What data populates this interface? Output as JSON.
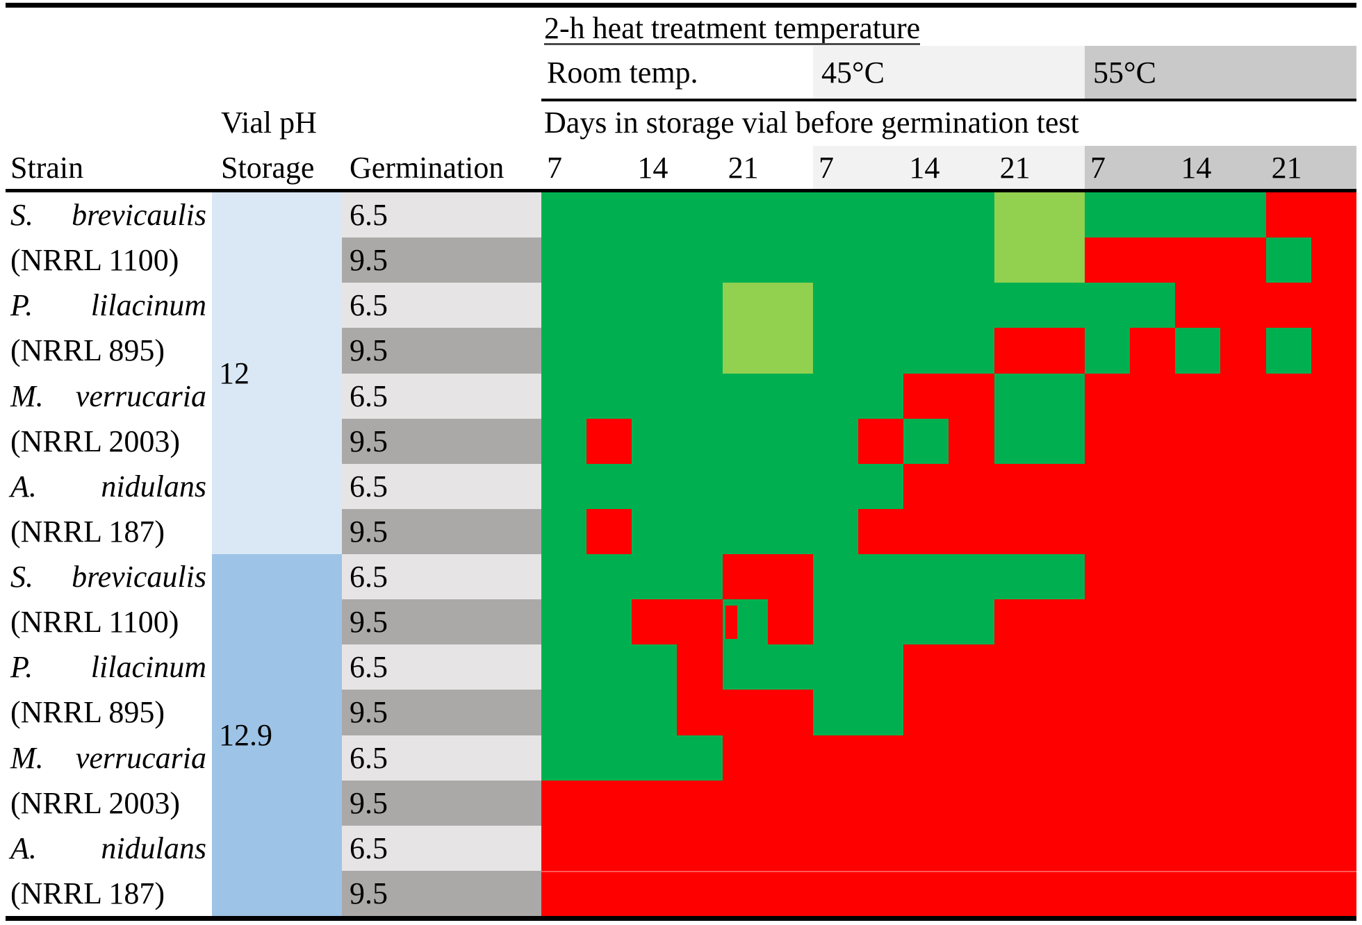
{
  "header": {
    "heat_title": "2-h heat treatment temperature",
    "room_temp_label": "Room temp.",
    "temp_45_label": "45°C",
    "temp_55_label": "55°C",
    "days_title": "Days in storage vial before germination test",
    "strain_col": "Strain",
    "vial_ph": "Vial pH",
    "storage_col": "Storage",
    "germination_col": "Germination",
    "day_numbers": [
      "7",
      "14",
      "21",
      "7",
      "14",
      "21",
      "7",
      "14",
      "21"
    ]
  },
  "groups": [
    {
      "storage_ph": "12",
      "strains": [
        {
          "genus": "S.",
          "species": "brevicaulis",
          "nrrl": "(NRRL 1100)"
        },
        {
          "genus": "P.",
          "species": "lilacinum",
          "nrrl": "(NRRL 895)"
        },
        {
          "genus": "M.",
          "species": "verrucaria",
          "nrrl": "(NRRL 2003)"
        },
        {
          "genus": "A.",
          "species": "nidulans",
          "nrrl": "(NRRL 187)"
        }
      ]
    },
    {
      "storage_ph": "12.9",
      "strains": [
        {
          "genus": "S.",
          "species": "brevicaulis",
          "nrrl": "(NRRL 1100)"
        },
        {
          "genus": "P.",
          "species": "lilacinum",
          "nrrl": "(NRRL 895)"
        },
        {
          "genus": "M.",
          "species": "verrucaria",
          "nrrl": "(NRRL 2003)"
        },
        {
          "genus": "A.",
          "species": "nidulans",
          "nrrl": "(NRRL 187)"
        }
      ]
    }
  ],
  "germination_ph_values": [
    "6.5",
    "9.5"
  ],
  "colors": {
    "green": "#00B050",
    "light_green": "#92D050",
    "red": "#FF0000",
    "temp45_bg": "#F2F2F2",
    "temp55_bg": "#C9C9C9",
    "germ_65_bg": "#E6E4E4",
    "germ_95_bg": "#ABA8A8",
    "storage_12_bg": "#DAE8F5",
    "storage_129_bg": "#9DC3E6"
  },
  "chart_data": {
    "type": "heatmap",
    "title": "2-h heat treatment temperature",
    "column_groups": [
      {
        "temperature": "Room temp.",
        "days": [
          7,
          14,
          21
        ]
      },
      {
        "temperature": "45°C",
        "days": [
          7,
          14,
          21
        ]
      },
      {
        "temperature": "55°C",
        "days": [
          7,
          14,
          21
        ]
      }
    ],
    "subcolumns_per_day": 2,
    "color_codes": {
      "G": "#00B050 dark green",
      "L": "#92D050 light green",
      "R": "#FF0000 red"
    },
    "rows": [
      {
        "strain": "S. brevicaulis (NRRL 1100)",
        "storage_ph": "12",
        "germination_ph": "6.5"
      },
      {
        "strain": "S. brevicaulis (NRRL 1100)",
        "storage_ph": "12",
        "germination_ph": "9.5"
      },
      {
        "strain": "P. lilacinum (NRRL 895)",
        "storage_ph": "12",
        "germination_ph": "6.5"
      },
      {
        "strain": "P. lilacinum (NRRL 895)",
        "storage_ph": "12",
        "germination_ph": "9.5"
      },
      {
        "strain": "M. verrucaria (NRRL 2003)",
        "storage_ph": "12",
        "germination_ph": "6.5"
      },
      {
        "strain": "M. verrucaria (NRRL 2003)",
        "storage_ph": "12",
        "germination_ph": "9.5"
      },
      {
        "strain": "A. nidulans (NRRL 187)",
        "storage_ph": "12",
        "germination_ph": "6.5"
      },
      {
        "strain": "A. nidulans (NRRL 187)",
        "storage_ph": "12",
        "germination_ph": "9.5"
      },
      {
        "strain": "S. brevicaulis (NRRL 1100)",
        "storage_ph": "12.9",
        "germination_ph": "6.5"
      },
      {
        "strain": "S. brevicaulis (NRRL 1100)",
        "storage_ph": "12.9",
        "germination_ph": "9.5"
      },
      {
        "strain": "P. lilacinum (NRRL 895)",
        "storage_ph": "12.9",
        "germination_ph": "6.5"
      },
      {
        "strain": "P. lilacinum (NRRL 895)",
        "storage_ph": "12.9",
        "germination_ph": "9.5"
      },
      {
        "strain": "M. verrucaria (NRRL 2003)",
        "storage_ph": "12.9",
        "germination_ph": "6.5"
      },
      {
        "strain": "M. verrucaria (NRRL 2003)",
        "storage_ph": "12.9",
        "germination_ph": "9.5"
      },
      {
        "strain": "A. nidulans (NRRL 187)",
        "storage_ph": "12.9",
        "germination_ph": "6.5"
      },
      {
        "strain": "A. nidulans (NRRL 187)",
        "storage_ph": "12.9",
        "germination_ph": "9.5"
      }
    ],
    "cells": [
      "GGGGGGGGGGLLGGGGRR",
      "GGGGGGGGGGLLRRRRGR",
      "GGGGLLGGGGGGGGRRRR",
      "GGGGLLGGGGRRGRGRGR",
      "GGGGGGGGRRGGRRRRRR",
      "GRGGGGGRGRGGRRRRRR",
      "GGGGGGGGRRRRRRRRRR",
      "GRGGGGGRRRRRRRRRRR",
      "GGGGRRGGGGGGRRRRRR",
      "GGRRGRGGGGRRRRRRRR",
      "GGGRGGGGRRRRRRRRRR",
      "GGGRRRGGRRRRRRRRRR",
      "GGGGRRRRRRRRRRRRRR",
      "RRRRRRRRRRRRRRRRRR",
      "RRRRRRRRRRRRRRRRRR",
      "RRRRRRRRRRRRRRRRRR"
    ],
    "partial_cell": {
      "row_index": 9,
      "subcol_index": 4,
      "marker": "thin red bar at left edge of green cell"
    }
  }
}
